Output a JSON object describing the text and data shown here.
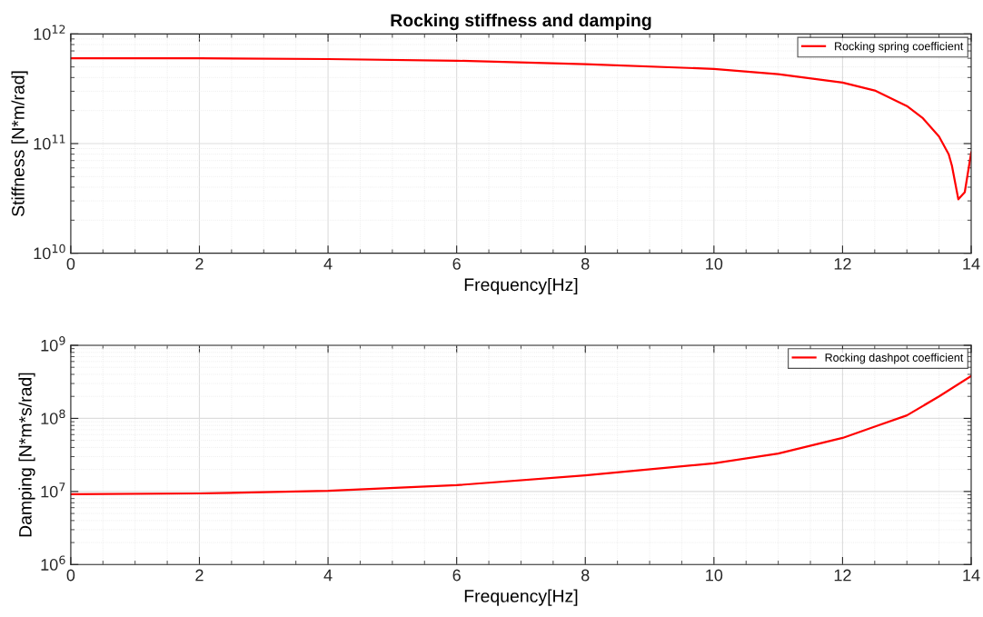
{
  "chart_data": [
    {
      "type": "line",
      "title": "Rocking stiffness and damping",
      "xlabel": "Frequency[Hz]",
      "ylabel": "Stiffness [N*m/rad]",
      "log": "y",
      "grid": true,
      "legend": "top right",
      "xlim": [
        0,
        14
      ],
      "xticks": [
        0,
        2,
        4,
        6,
        8,
        10,
        12,
        14
      ],
      "ylim": [
        10000000000.0,
        1000000000000.0
      ],
      "yticks": [
        {
          "value": 10000000000.0,
          "label": "10$^{10}$"
        },
        {
          "value": 100000000000.0,
          "label": "10$^{11}$"
        },
        {
          "value": 1000000000000.0,
          "label": "10$^{12}$"
        }
      ],
      "series": [
        {
          "name": "Rocking spring coefficient",
          "color": "#ff0000",
          "x": [
            0,
            2,
            4,
            6,
            8,
            10,
            11,
            12,
            12.5,
            13,
            13.25,
            13.5,
            13.65,
            13.7,
            13.8,
            13.9,
            14
          ],
          "values": [
            600000000000.0,
            600000000000.0,
            590000000000.0,
            570000000000.0,
            530000000000.0,
            480000000000.0,
            430000000000.0,
            360000000000.0,
            305000000000.0,
            220000000000.0,
            170000000000.0,
            116000000000.0,
            80000000000.0,
            63000000000.0,
            31000000000.0,
            36000000000.0,
            83000000000.0
          ]
        }
      ]
    },
    {
      "type": "line",
      "xlabel": "Frequency[Hz]",
      "ylabel": "Damping [N*m*s/rad]",
      "log": "y",
      "grid": true,
      "legend": "top right",
      "xlim": [
        0,
        14
      ],
      "xticks": [
        0,
        2,
        4,
        6,
        8,
        10,
        12,
        14
      ],
      "ylim": [
        1000000.0,
        1000000000.0
      ],
      "yticks": [
        {
          "value": 1000000.0,
          "label": "10$^{6}$"
        },
        {
          "value": 10000000.0,
          "label": "10$^{7}$"
        },
        {
          "value": 100000000.0,
          "label": "10$^{8}$"
        },
        {
          "value": 1000000000.0,
          "label": "10$^{9}$"
        }
      ],
      "series": [
        {
          "name": "Rocking dashpot coefficient",
          "color": "#ff0000",
          "x": [
            0,
            2,
            4,
            6,
            8,
            10,
            11,
            12,
            12.5,
            13,
            13.5,
            14
          ],
          "values": [
            9200000.0,
            9400000.0,
            10200000.0,
            12200000.0,
            16600000.0,
            24300000.0,
            33000000.0,
            54000000.0,
            77000000.0,
            110000000.0,
            200000000.0,
            380000000.0
          ]
        }
      ]
    }
  ]
}
